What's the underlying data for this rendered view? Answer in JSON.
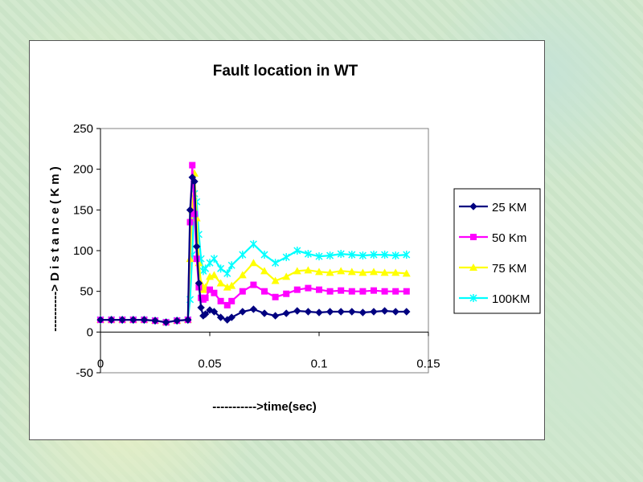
{
  "chart_data": {
    "type": "line",
    "title": "Fault location in WT",
    "xlabel": "----------->time(sec)",
    "ylabel": "----------> D i s t a n c e ( K m )",
    "xlim": [
      0,
      0.15
    ],
    "ylim": [
      -50,
      250
    ],
    "x_ticks": [
      "0",
      "0.05",
      "0.1",
      "0.15"
    ],
    "x_tick_values": [
      0,
      0.05,
      0.1,
      0.15
    ],
    "y_ticks": [
      "250",
      "200",
      "150",
      "100",
      "50",
      "0",
      "-50"
    ],
    "y_tick_values": [
      250,
      200,
      150,
      100,
      50,
      0,
      -50
    ],
    "legend_position": "right",
    "series": [
      {
        "name": "25 KM",
        "color": "#000080",
        "marker": "diamond",
        "x": [
          0,
          0.005,
          0.01,
          0.015,
          0.02,
          0.025,
          0.03,
          0.035,
          0.04,
          0.041,
          0.042,
          0.043,
          0.044,
          0.045,
          0.046,
          0.047,
          0.048,
          0.05,
          0.052,
          0.055,
          0.058,
          0.06,
          0.065,
          0.07,
          0.075,
          0.08,
          0.085,
          0.09,
          0.095,
          0.1,
          0.105,
          0.11,
          0.115,
          0.12,
          0.125,
          0.13,
          0.135,
          0.14
        ],
        "values": [
          15,
          15,
          15,
          15,
          15,
          14,
          12,
          14,
          15,
          150,
          190,
          185,
          105,
          60,
          30,
          20,
          22,
          27,
          25,
          18,
          15,
          18,
          25,
          28,
          23,
          20,
          23,
          26,
          25,
          24,
          25,
          25,
          25,
          24,
          25,
          26,
          25,
          25
        ]
      },
      {
        "name": "50 Km",
        "color": "#ff00ff",
        "marker": "square",
        "x": [
          0,
          0.005,
          0.01,
          0.015,
          0.02,
          0.025,
          0.03,
          0.035,
          0.04,
          0.041,
          0.042,
          0.043,
          0.044,
          0.045,
          0.046,
          0.047,
          0.048,
          0.05,
          0.052,
          0.055,
          0.058,
          0.06,
          0.065,
          0.07,
          0.075,
          0.08,
          0.085,
          0.09,
          0.095,
          0.1,
          0.105,
          0.11,
          0.115,
          0.12,
          0.125,
          0.13,
          0.135,
          0.14
        ],
        "values": [
          15,
          15,
          15,
          15,
          15,
          14,
          12,
          14,
          15,
          135,
          205,
          145,
          90,
          55,
          42,
          40,
          42,
          52,
          48,
          38,
          33,
          38,
          50,
          58,
          50,
          43,
          47,
          52,
          54,
          52,
          50,
          51,
          50,
          50,
          51,
          50,
          50,
          50
        ]
      },
      {
        "name": "75 KM",
        "color": "#ffff00",
        "marker": "triangle",
        "x": [
          0,
          0.005,
          0.01,
          0.015,
          0.02,
          0.025,
          0.03,
          0.035,
          0.04,
          0.041,
          0.042,
          0.043,
          0.044,
          0.045,
          0.046,
          0.047,
          0.048,
          0.05,
          0.052,
          0.055,
          0.058,
          0.06,
          0.065,
          0.07,
          0.075,
          0.08,
          0.085,
          0.09,
          0.095,
          0.1,
          0.105,
          0.11,
          0.115,
          0.12,
          0.125,
          0.13,
          0.135,
          0.14
        ],
        "values": [
          15,
          15,
          15,
          15,
          15,
          14,
          12,
          14,
          15,
          90,
          150,
          195,
          140,
          85,
          60,
          52,
          55,
          68,
          70,
          60,
          55,
          57,
          70,
          85,
          75,
          63,
          68,
          75,
          76,
          74,
          73,
          75,
          74,
          73,
          74,
          73,
          73,
          72
        ]
      },
      {
        "name": "100KM",
        "color": "#00ffff",
        "marker": "x",
        "x": [
          0,
          0.005,
          0.01,
          0.015,
          0.02,
          0.025,
          0.03,
          0.035,
          0.04,
          0.041,
          0.042,
          0.043,
          0.044,
          0.045,
          0.046,
          0.047,
          0.048,
          0.05,
          0.052,
          0.055,
          0.058,
          0.06,
          0.065,
          0.07,
          0.075,
          0.08,
          0.085,
          0.09,
          0.095,
          0.1,
          0.105,
          0.11,
          0.115,
          0.12,
          0.125,
          0.13,
          0.135,
          0.14
        ],
        "values": [
          15,
          15,
          15,
          15,
          15,
          14,
          12,
          14,
          15,
          40,
          95,
          170,
          160,
          120,
          90,
          75,
          78,
          85,
          90,
          78,
          72,
          82,
          95,
          108,
          95,
          85,
          92,
          100,
          96,
          93,
          94,
          96,
          95,
          94,
          95,
          95,
          94,
          95
        ]
      }
    ]
  }
}
